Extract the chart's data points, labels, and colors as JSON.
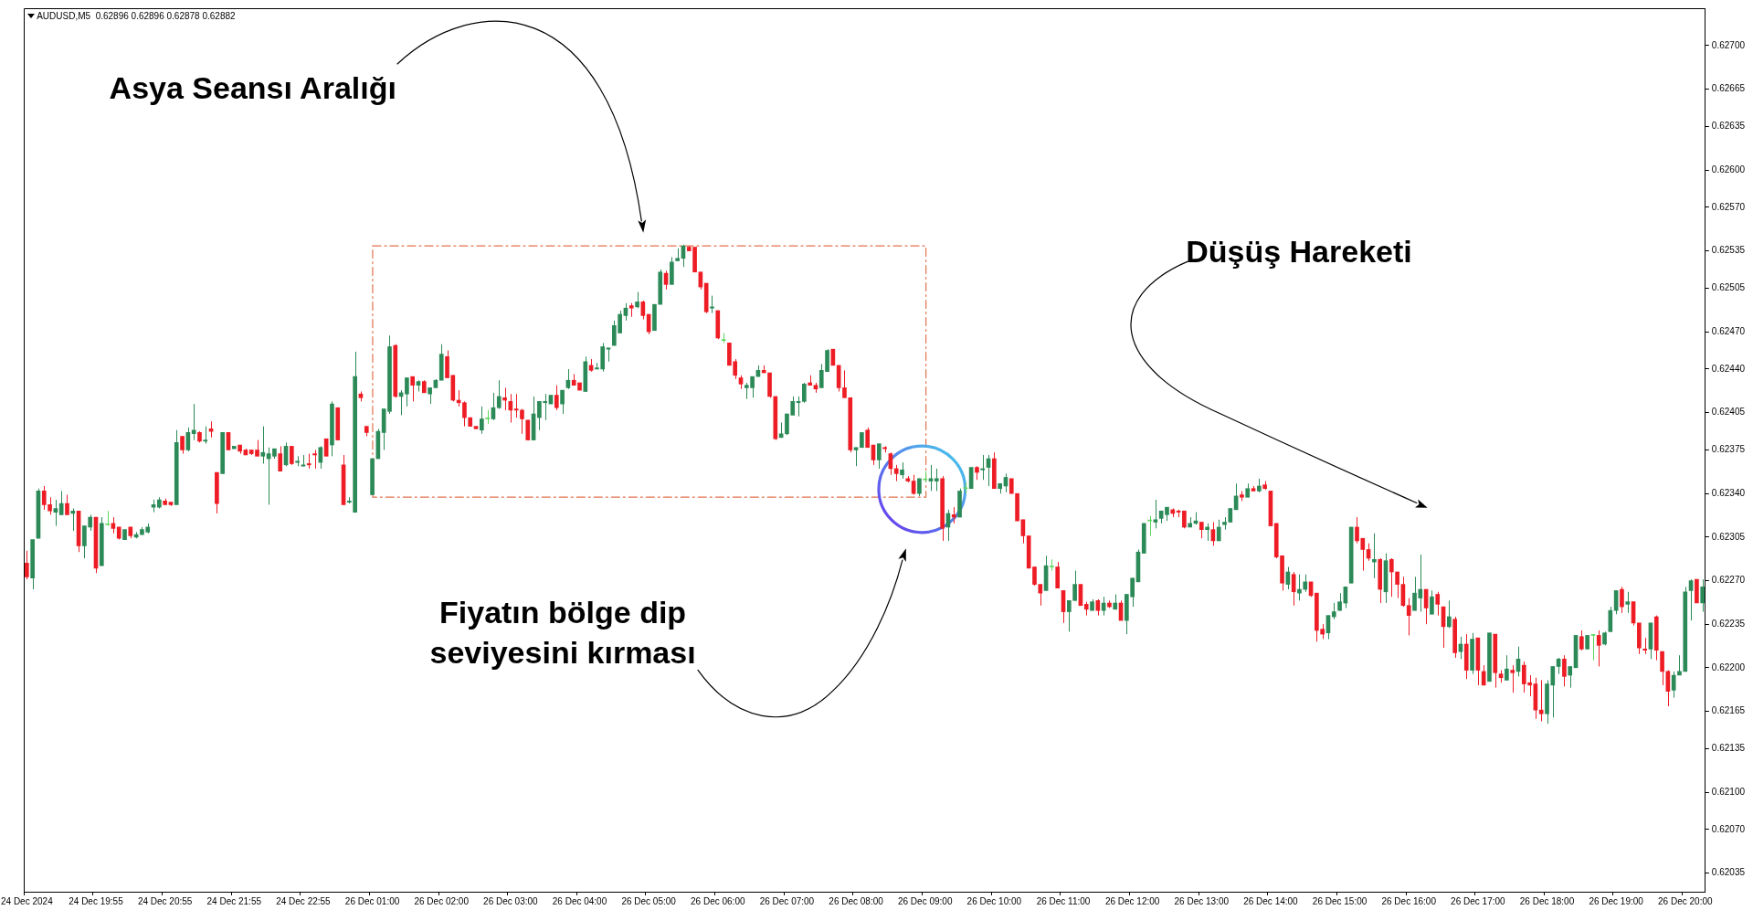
{
  "chart_data": {
    "type": "candlestick",
    "title": "AUDUSD,M5  0.62896 0.62896 0.62878 0.62882",
    "categories": [
      "24 Dec 2024",
      null,
      null,
      null,
      null,
      null,
      null,
      null,
      null,
      null,
      null,
      null,
      "24 Dec 19:55",
      null,
      null,
      null,
      null,
      null,
      null,
      null,
      null,
      null,
      null,
      null,
      "24 Dec 20:55",
      null,
      null,
      null,
      null,
      null,
      null,
      null,
      null,
      null,
      null,
      null,
      "24 Dec 21:55",
      null,
      null,
      null,
      null,
      null,
      null,
      null,
      null,
      null,
      null,
      null,
      "24 Dec 22:55",
      null,
      null,
      null,
      null,
      null,
      null,
      null,
      null,
      null,
      null,
      null,
      "26 Dec 01:00",
      null,
      null,
      null,
      null,
      null,
      null,
      null,
      null,
      null,
      null,
      null,
      "26 Dec 02:00",
      null,
      null,
      null,
      null,
      null,
      null,
      null,
      null,
      null,
      null,
      null,
      "26 Dec 03:00",
      null,
      null,
      null,
      null,
      null,
      null,
      null,
      null,
      null,
      null,
      null,
      "26 Dec 04:00",
      null,
      null,
      null,
      null,
      null,
      null,
      null,
      null,
      null,
      null,
      null,
      "26 Dec 05:00",
      null,
      null,
      null,
      null,
      null,
      null,
      null,
      null,
      null,
      null,
      null,
      "26 Dec 06:00",
      null,
      null,
      null,
      null,
      null,
      null,
      null,
      null,
      null,
      null,
      null,
      "26 Dec 07:00",
      null,
      null,
      null,
      null,
      null,
      null,
      null,
      null,
      null,
      null,
      null,
      "26 Dec 08:00",
      null,
      null,
      null,
      null,
      null,
      null,
      null,
      null,
      null,
      null,
      null,
      "26 Dec 09:00",
      null,
      null,
      null,
      null,
      null,
      null,
      null,
      null,
      null,
      null,
      null,
      "26 Dec 10:00",
      null,
      null,
      null,
      null,
      null,
      null,
      null,
      null,
      null,
      null,
      null,
      "26 Dec 11:00",
      null,
      null,
      null,
      null,
      null,
      null,
      null,
      null,
      null,
      null,
      null,
      "26 Dec 12:00",
      null,
      null,
      null,
      null,
      null,
      null,
      null,
      null,
      null,
      null,
      null,
      "26 Dec 13:00",
      null,
      null,
      null,
      null,
      null,
      null,
      null,
      null,
      null,
      null,
      null,
      "26 Dec 14:00",
      null,
      null,
      null,
      null,
      null,
      null,
      null,
      null,
      null,
      null,
      null,
      "26 Dec 15:00",
      null,
      null,
      null,
      null,
      null,
      null,
      null,
      null,
      null,
      null,
      null,
      "26 Dec 16:00",
      null,
      null,
      null,
      null,
      null,
      null,
      null,
      null,
      null,
      null,
      null,
      "26 Dec 17:00",
      null,
      null,
      null,
      null,
      null,
      null,
      null,
      null,
      null,
      null,
      null,
      "26 Dec 18:00",
      null,
      null,
      null,
      null,
      null,
      null,
      null,
      null,
      null,
      null,
      null,
      "26 Dec 19:00",
      null,
      null,
      null,
      null,
      null,
      null,
      null,
      null,
      null,
      null,
      null,
      "26 Dec 20:00",
      null,
      null,
      null
    ],
    "ohlc": [
      [
        0.62284,
        0.62294,
        0.62271,
        0.62273
      ],
      [
        0.62272,
        0.62303,
        0.62263,
        0.62303
      ],
      [
        0.62304,
        0.62344,
        0.62304,
        0.62342
      ],
      [
        0.62342,
        0.62346,
        0.62327,
        0.62331
      ],
      [
        0.62331,
        0.62337,
        0.62323,
        0.62326
      ],
      [
        0.62325,
        0.62335,
        0.62314,
        0.62328
      ],
      [
        0.62323,
        0.62342,
        0.62323,
        0.62332
      ],
      [
        0.62332,
        0.62339,
        0.62323,
        0.62323
      ],
      [
        0.62324,
        0.62328,
        0.6231,
        0.62326
      ],
      [
        0.62326,
        0.62326,
        0.62293,
        0.62298
      ],
      [
        0.62298,
        0.62314,
        0.62288,
        0.62314
      ],
      [
        0.62313,
        0.62323,
        0.6231,
        0.62321
      ],
      [
        0.62321,
        0.62321,
        0.62276,
        0.6228
      ],
      [
        0.62282,
        0.62321,
        0.62282,
        0.62316
      ],
      [
        0.62315,
        0.62326,
        0.62314,
        0.62315
      ],
      [
        0.62316,
        0.62321,
        0.62308,
        0.62312
      ],
      [
        0.62313,
        0.62313,
        0.62303,
        0.62304
      ],
      [
        0.62303,
        0.62311,
        0.62303,
        0.62311
      ],
      [
        0.62313,
        0.62313,
        0.62304,
        0.62306
      ],
      [
        0.62305,
        0.62309,
        0.62304,
        0.62307
      ],
      [
        0.62307,
        0.62313,
        0.62307,
        0.62311
      ],
      [
        0.62309,
        0.62316,
        0.62308,
        0.62313
      ],
      [
        0.62329,
        0.62335,
        0.62325,
        0.62331
      ],
      [
        0.62329,
        0.62337,
        0.62328,
        0.62335
      ],
      [
        0.62334,
        0.62336,
        0.62331,
        0.62331
      ],
      [
        0.62333,
        0.62333,
        0.6233,
        0.62331
      ],
      [
        0.62331,
        0.62391,
        0.62331,
        0.62381
      ],
      [
        0.62386,
        0.62386,
        0.62372,
        0.62375
      ],
      [
        0.62375,
        0.62393,
        0.62374,
        0.62389
      ],
      [
        0.62388,
        0.62412,
        0.62383,
        0.62391
      ],
      [
        0.62389,
        0.6239,
        0.62381,
        0.62382
      ],
      [
        0.62382,
        0.62394,
        0.6238,
        0.62383
      ],
      [
        0.62392,
        0.62398,
        0.62385,
        0.6239
      ],
      [
        0.62357,
        0.62357,
        0.62324,
        0.62332
      ],
      [
        0.62356,
        0.62389,
        0.62356,
        0.62389
      ],
      [
        0.62389,
        0.62389,
        0.62375,
        0.62375
      ],
      [
        0.62376,
        0.62378,
        0.62376,
        0.62378
      ],
      [
        0.62379,
        0.62379,
        0.62372,
        0.62374
      ],
      [
        0.62375,
        0.62376,
        0.62371,
        0.62371
      ],
      [
        0.62375,
        0.62375,
        0.62371,
        0.62372
      ],
      [
        0.62375,
        0.62383,
        0.6237,
        0.6237
      ],
      [
        0.6237,
        0.62394,
        0.62364,
        0.62373
      ],
      [
        0.62368,
        0.62377,
        0.62331,
        0.62372
      ],
      [
        0.6237,
        0.62376,
        0.62368,
        0.62376
      ],
      [
        0.62372,
        0.62378,
        0.62358,
        0.62358
      ],
      [
        0.62363,
        0.62381,
        0.62362,
        0.62378
      ],
      [
        0.62378,
        0.62378,
        0.62363,
        0.62364
      ],
      [
        0.62365,
        0.6237,
        0.62362,
        0.62366
      ],
      [
        0.62362,
        0.62371,
        0.62362,
        0.62363
      ],
      [
        0.62364,
        0.62372,
        0.6236,
        0.62363
      ],
      [
        0.62372,
        0.62375,
        0.6236,
        0.62371
      ],
      [
        0.62365,
        0.62378,
        0.6236,
        0.62377
      ],
      [
        0.62384,
        0.62384,
        0.6237,
        0.6237
      ],
      [
        0.62379,
        0.62414,
        0.6237,
        0.62412
      ],
      [
        0.62409,
        0.62409,
        0.62383,
        0.62383
      ],
      [
        0.62363,
        0.62371,
        0.62331,
        0.62331
      ],
      [
        0.62333,
        0.62337,
        0.62332,
        0.62334
      ],
      [
        0.62325,
        0.62454,
        0.62325,
        0.62434
      ],
      [
        0.6242,
        0.62422,
        0.62414,
        0.62417
      ],
      [
        0.62394,
        0.62394,
        0.62386,
        0.62389
      ],
      [
        0.62339,
        0.62368,
        0.62339,
        0.62368
      ],
      [
        0.62368,
        0.62392,
        0.62368,
        0.6239
      ],
      [
        0.62389,
        0.62408,
        0.62375,
        0.62408
      ],
      [
        0.62406,
        0.62467,
        0.62404,
        0.62458
      ],
      [
        0.62459,
        0.6246,
        0.62417,
        0.62418
      ],
      [
        0.62418,
        0.62423,
        0.62403,
        0.62421
      ],
      [
        0.6242,
        0.62433,
        0.6241,
        0.62433
      ],
      [
        0.62434,
        0.62434,
        0.62414,
        0.62427
      ],
      [
        0.62427,
        0.62431,
        0.62422,
        0.6243
      ],
      [
        0.6243,
        0.62431,
        0.62421,
        0.62421
      ],
      [
        0.6242,
        0.62425,
        0.62412,
        0.62425
      ],
      [
        0.62425,
        0.62432,
        0.62425,
        0.62431
      ],
      [
        0.62431,
        0.6246,
        0.62431,
        0.62452
      ],
      [
        0.6245,
        0.62455,
        0.62433,
        0.62433
      ],
      [
        0.62435,
        0.62435,
        0.62414,
        0.62415
      ],
      [
        0.62415,
        0.62423,
        0.6241,
        0.62413
      ],
      [
        0.62413,
        0.62414,
        0.62394,
        0.62401
      ],
      [
        0.62401,
        0.62401,
        0.62394,
        0.62394
      ],
      [
        0.62394,
        0.62394,
        0.62392,
        0.62392
      ],
      [
        0.62391,
        0.6241,
        0.62388,
        0.624
      ],
      [
        0.624,
        0.62407,
        0.62396,
        0.624
      ],
      [
        0.624,
        0.62421,
        0.62399,
        0.62409
      ],
      [
        0.62409,
        0.62431,
        0.62408,
        0.62418
      ],
      [
        0.62417,
        0.62425,
        0.62407,
        0.62415
      ],
      [
        0.62414,
        0.6242,
        0.62397,
        0.62407
      ],
      [
        0.62408,
        0.6242,
        0.62401,
        0.62407
      ],
      [
        0.62407,
        0.62408,
        0.62388,
        0.624
      ],
      [
        0.62399,
        0.62399,
        0.62383,
        0.62383
      ],
      [
        0.62383,
        0.62418,
        0.62383,
        0.62404
      ],
      [
        0.62401,
        0.62414,
        0.62391,
        0.62414
      ],
      [
        0.62413,
        0.6242,
        0.62399,
        0.62414
      ],
      [
        0.62412,
        0.62419,
        0.62412,
        0.62419
      ],
      [
        0.62419,
        0.62427,
        0.62407,
        0.62409
      ],
      [
        0.62412,
        0.62423,
        0.62404,
        0.62423
      ],
      [
        0.62425,
        0.6244,
        0.62424,
        0.62431
      ],
      [
        0.62431,
        0.62436,
        0.62427,
        0.62427
      ],
      [
        0.62429,
        0.62429,
        0.62423,
        0.62423
      ],
      [
        0.62422,
        0.6245,
        0.62422,
        0.62446
      ],
      [
        0.62443,
        0.62448,
        0.62438,
        0.62439
      ],
      [
        0.6244,
        0.62445,
        0.6244,
        0.62441
      ],
      [
        0.6244,
        0.62461,
        0.62438,
        0.62458
      ],
      [
        0.62456,
        0.62457,
        0.62446,
        0.62457
      ],
      [
        0.62459,
        0.62479,
        0.62459,
        0.62475
      ],
      [
        0.62469,
        0.62487,
        0.62469,
        0.62484
      ],
      [
        0.62483,
        0.62493,
        0.62479,
        0.62489
      ],
      [
        0.62491,
        0.62493,
        0.62482,
        0.62489
      ],
      [
        0.6249,
        0.62502,
        0.62489,
        0.62494
      ],
      [
        0.62494,
        0.62495,
        0.6248,
        0.62483
      ],
      [
        0.62484,
        0.62484,
        0.62468,
        0.6247
      ],
      [
        0.62471,
        0.62492,
        0.62471,
        0.62492
      ],
      [
        0.62492,
        0.6252,
        0.62492,
        0.62518
      ],
      [
        0.62517,
        0.62519,
        0.62504,
        0.62508
      ],
      [
        0.62508,
        0.6253,
        0.62508,
        0.62526
      ],
      [
        0.62527,
        0.62537,
        0.62527,
        0.62529
      ],
      [
        0.62529,
        0.6254,
        0.62522,
        0.62539
      ],
      [
        0.62538,
        0.62539,
        0.62535,
        0.62535
      ],
      [
        0.62538,
        0.62538,
        0.62518,
        0.62518
      ],
      [
        0.62518,
        0.62518,
        0.62504,
        0.62506
      ],
      [
        0.62509,
        0.62509,
        0.62485,
        0.62486
      ],
      [
        0.62489,
        0.62499,
        0.62485,
        0.6249
      ],
      [
        0.62487,
        0.62487,
        0.62464,
        0.62465
      ],
      [
        0.62463,
        0.62469,
        0.62461,
        0.62463
      ],
      [
        0.62461,
        0.62461,
        0.62443,
        0.62443
      ],
      [
        0.62446,
        0.62448,
        0.62432,
        0.62435
      ],
      [
        0.62433,
        0.62435,
        0.62424,
        0.62428
      ],
      [
        0.62425,
        0.62429,
        0.62416,
        0.62427
      ],
      [
        0.62425,
        0.62434,
        0.62417,
        0.62434
      ],
      [
        0.62434,
        0.62443,
        0.62434,
        0.62439
      ],
      [
        0.62439,
        0.62443,
        0.62437,
        0.62437
      ],
      [
        0.62437,
        0.62437,
        0.62417,
        0.62418
      ],
      [
        0.62418,
        0.62418,
        0.62383,
        0.62384
      ],
      [
        0.62385,
        0.62397,
        0.62385,
        0.62388
      ],
      [
        0.62388,
        0.62404,
        0.62387,
        0.62404
      ],
      [
        0.62403,
        0.62418,
        0.62403,
        0.62414
      ],
      [
        0.62413,
        0.62418,
        0.62402,
        0.62414
      ],
      [
        0.62414,
        0.62429,
        0.62413,
        0.62428
      ],
      [
        0.62429,
        0.62435,
        0.62427,
        0.62427
      ],
      [
        0.62427,
        0.62429,
        0.62421,
        0.62424
      ],
      [
        0.62425,
        0.62444,
        0.62425,
        0.62439
      ],
      [
        0.62438,
        0.62456,
        0.62438,
        0.62455
      ],
      [
        0.62456,
        0.62456,
        0.62443,
        0.62443
      ],
      [
        0.62443,
        0.62443,
        0.62422,
        0.62425
      ],
      [
        0.62425,
        0.62439,
        0.62417,
        0.62417
      ],
      [
        0.62417,
        0.62417,
        0.62373,
        0.62375
      ],
      [
        0.62375,
        0.62377,
        0.62362,
        0.62377
      ],
      [
        0.62377,
        0.62389,
        0.62377,
        0.62389
      ],
      [
        0.62391,
        0.62393,
        0.62377,
        0.62377
      ],
      [
        0.62379,
        0.62379,
        0.62363,
        0.62367
      ],
      [
        0.62367,
        0.6238,
        0.6236,
        0.6238
      ],
      [
        0.62377,
        0.62378,
        0.62373,
        0.62376
      ],
      [
        0.62372,
        0.62373,
        0.62355,
        0.6236
      ],
      [
        0.6236,
        0.62363,
        0.6235,
        0.62356
      ],
      [
        0.62355,
        0.62365,
        0.62352,
        0.62359
      ],
      [
        0.62352,
        0.62354,
        0.62349,
        0.6235
      ],
      [
        0.6235,
        0.62355,
        0.62339,
        0.6234
      ],
      [
        0.6234,
        0.62352,
        0.62338,
        0.62352
      ],
      [
        0.62351,
        0.62358,
        0.62349,
        0.62351
      ],
      [
        0.6235,
        0.62363,
        0.62342,
        0.62352
      ],
      [
        0.6235,
        0.6236,
        0.62342,
        0.62352
      ],
      [
        0.62352,
        0.62354,
        0.62302,
        0.62312
      ],
      [
        0.62313,
        0.62327,
        0.62302,
        0.62324
      ],
      [
        0.62323,
        0.62329,
        0.62316,
        0.62321
      ],
      [
        0.62321,
        0.62344,
        0.62321,
        0.62342
      ],
      [
        0.62344,
        0.62349,
        0.6234,
        0.62344
      ],
      [
        0.62344,
        0.62361,
        0.62344,
        0.62361
      ],
      [
        0.62361,
        0.62362,
        0.62351,
        0.62357
      ],
      [
        0.62359,
        0.62371,
        0.62351,
        0.6236
      ],
      [
        0.62361,
        0.62371,
        0.62346,
        0.62368
      ],
      [
        0.62368,
        0.62373,
        0.62344,
        0.62344
      ],
      [
        0.62344,
        0.62348,
        0.6234,
        0.62348
      ],
      [
        0.62346,
        0.62356,
        0.62341,
        0.62353
      ],
      [
        0.62352,
        0.62352,
        0.6234,
        0.6234
      ],
      [
        0.6234,
        0.6234,
        0.62318,
        0.62318
      ],
      [
        0.62319,
        0.62319,
        0.623,
        0.62306
      ],
      [
        0.62306,
        0.62306,
        0.6228,
        0.6228
      ],
      [
        0.62281,
        0.62281,
        0.62266,
        0.62267
      ],
      [
        0.62267,
        0.62267,
        0.6225,
        0.6226
      ],
      [
        0.62262,
        0.6229,
        0.62262,
        0.62282
      ],
      [
        0.62281,
        0.62287,
        0.62278,
        0.62281
      ],
      [
        0.62281,
        0.62285,
        0.62264,
        0.62264
      ],
      [
        0.62262,
        0.62262,
        0.62236,
        0.62245
      ],
      [
        0.62245,
        0.62254,
        0.62229,
        0.62254
      ],
      [
        0.62254,
        0.62278,
        0.62254,
        0.62267
      ],
      [
        0.62267,
        0.62267,
        0.6225,
        0.6225
      ],
      [
        0.62251,
        0.62253,
        0.62242,
        0.62247
      ],
      [
        0.62246,
        0.62255,
        0.62246,
        0.62253
      ],
      [
        0.62254,
        0.62255,
        0.62242,
        0.62246
      ],
      [
        0.62246,
        0.62257,
        0.62242,
        0.62252
      ],
      [
        0.62252,
        0.62254,
        0.62248,
        0.62249
      ],
      [
        0.62247,
        0.62259,
        0.62247,
        0.62252
      ],
      [
        0.62252,
        0.62254,
        0.62238,
        0.62238
      ],
      [
        0.62238,
        0.62259,
        0.62227,
        0.62259
      ],
      [
        0.62257,
        0.62272,
        0.62249,
        0.62272
      ],
      [
        0.62269,
        0.62295,
        0.62269,
        0.62293
      ],
      [
        0.62292,
        0.62316,
        0.62292,
        0.62316
      ],
      [
        0.62318,
        0.62322,
        0.62306,
        0.62318
      ],
      [
        0.62317,
        0.62335,
        0.62312,
        0.62319
      ],
      [
        0.6232,
        0.62326,
        0.62316,
        0.62326
      ],
      [
        0.62323,
        0.62329,
        0.62318,
        0.62329
      ],
      [
        0.62327,
        0.62328,
        0.62321,
        0.62324
      ],
      [
        0.62326,
        0.62327,
        0.62321,
        0.62325
      ],
      [
        0.62326,
        0.62326,
        0.62312,
        0.62313
      ],
      [
        0.62313,
        0.62321,
        0.62313,
        0.62316
      ],
      [
        0.62316,
        0.62325,
        0.62315,
        0.62318
      ],
      [
        0.62317,
        0.62317,
        0.62304,
        0.62311
      ],
      [
        0.62311,
        0.62316,
        0.62302,
        0.62313
      ],
      [
        0.62311,
        0.62317,
        0.62298,
        0.62302
      ],
      [
        0.62302,
        0.62319,
        0.62302,
        0.62313
      ],
      [
        0.62315,
        0.62321,
        0.62311,
        0.62317
      ],
      [
        0.62317,
        0.62328,
        0.62317,
        0.62328
      ],
      [
        0.62327,
        0.62348,
        0.62327,
        0.62338
      ],
      [
        0.62339,
        0.62342,
        0.62334,
        0.62337
      ],
      [
        0.62337,
        0.62348,
        0.62337,
        0.62344
      ],
      [
        0.62344,
        0.62346,
        0.62342,
        0.62342
      ],
      [
        0.62342,
        0.62352,
        0.62341,
        0.62346
      ],
      [
        0.62347,
        0.6235,
        0.62343,
        0.62344
      ],
      [
        0.62342,
        0.62342,
        0.62314,
        0.62314
      ],
      [
        0.62316,
        0.62316,
        0.62288,
        0.62289
      ],
      [
        0.6229,
        0.6229,
        0.62262,
        0.62268
      ],
      [
        0.62267,
        0.62281,
        0.62263,
        0.62277
      ],
      [
        0.62275,
        0.62277,
        0.6225,
        0.62261
      ],
      [
        0.6226,
        0.62275,
        0.62254,
        0.62263
      ],
      [
        0.62263,
        0.62275,
        0.62261,
        0.62269
      ],
      [
        0.62269,
        0.62269,
        0.62257,
        0.62258
      ],
      [
        0.6226,
        0.6226,
        0.62221,
        0.6223
      ],
      [
        0.62231,
        0.62235,
        0.62223,
        0.62227
      ],
      [
        0.62228,
        0.62242,
        0.62223,
        0.62242
      ],
      [
        0.62241,
        0.62252,
        0.62239,
        0.62245
      ],
      [
        0.62246,
        0.6226,
        0.62246,
        0.62253
      ],
      [
        0.62252,
        0.62265,
        0.62248,
        0.62265
      ],
      [
        0.62268,
        0.62313,
        0.62268,
        0.62313
      ],
      [
        0.62313,
        0.62321,
        0.623,
        0.62302
      ],
      [
        0.62304,
        0.62304,
        0.62278,
        0.62295
      ],
      [
        0.62295,
        0.623,
        0.62286,
        0.62288
      ],
      [
        0.62285,
        0.62308,
        0.62272,
        0.62287
      ],
      [
        0.62287,
        0.62288,
        0.62252,
        0.62263
      ],
      [
        0.62261,
        0.62292,
        0.62252,
        0.62286
      ],
      [
        0.62287,
        0.62288,
        0.62257,
        0.62277
      ],
      [
        0.62277,
        0.62277,
        0.62256,
        0.62267
      ],
      [
        0.62267,
        0.62273,
        0.62249,
        0.6225
      ],
      [
        0.6225,
        0.62256,
        0.62226,
        0.62242
      ],
      [
        0.62246,
        0.62273,
        0.62246,
        0.6226
      ],
      [
        0.62256,
        0.62291,
        0.62245,
        0.62263
      ],
      [
        0.62263,
        0.62263,
        0.62235,
        0.62248
      ],
      [
        0.62243,
        0.62262,
        0.62243,
        0.62257
      ],
      [
        0.62259,
        0.62261,
        0.62242,
        0.62251
      ],
      [
        0.62249,
        0.62249,
        0.62216,
        0.62233
      ],
      [
        0.62233,
        0.62254,
        0.62232,
        0.62241
      ],
      [
        0.62239,
        0.62241,
        0.62208,
        0.62212
      ],
      [
        0.62213,
        0.62225,
        0.62207,
        0.62219
      ],
      [
        0.62219,
        0.62227,
        0.62191,
        0.62198
      ],
      [
        0.62198,
        0.62228,
        0.62195,
        0.62223
      ],
      [
        0.62224,
        0.62224,
        0.62186,
        0.62198
      ],
      [
        0.62197,
        0.62202,
        0.62186,
        0.62186
      ],
      [
        0.62189,
        0.62228,
        0.62189,
        0.62228
      ],
      [
        0.62227,
        0.62227,
        0.62184,
        0.62196
      ],
      [
        0.62195,
        0.62198,
        0.62188,
        0.62192
      ],
      [
        0.6219,
        0.6221,
        0.6219,
        0.62199
      ],
      [
        0.62198,
        0.62202,
        0.6218,
        0.62196
      ],
      [
        0.62197,
        0.62217,
        0.62193,
        0.62207
      ],
      [
        0.62202,
        0.62205,
        0.6218,
        0.62187
      ],
      [
        0.62188,
        0.62194,
        0.62177,
        0.62186
      ],
      [
        0.62187,
        0.62192,
        0.62159,
        0.62166
      ],
      [
        0.62166,
        0.6219,
        0.62157,
        0.62163
      ],
      [
        0.62163,
        0.6219,
        0.62155,
        0.62187
      ],
      [
        0.62186,
        0.62201,
        0.6216,
        0.62201
      ],
      [
        0.62201,
        0.62208,
        0.62195,
        0.62207
      ],
      [
        0.62207,
        0.6221,
        0.62185,
        0.62193
      ],
      [
        0.62194,
        0.62201,
        0.62184,
        0.62201
      ],
      [
        0.622,
        0.62226,
        0.622,
        0.62226
      ],
      [
        0.62225,
        0.6223,
        0.62214,
        0.62215
      ],
      [
        0.62215,
        0.62226,
        0.62215,
        0.62226
      ],
      [
        0.62226,
        0.62227,
        0.62206,
        0.62226
      ],
      [
        0.62226,
        0.6223,
        0.62201,
        0.62218
      ],
      [
        0.62219,
        0.62229,
        0.62218,
        0.62228
      ],
      [
        0.62229,
        0.62249,
        0.62229,
        0.62246
      ],
      [
        0.62246,
        0.62262,
        0.62243,
        0.62262
      ],
      [
        0.62263,
        0.62265,
        0.62244,
        0.62249
      ],
      [
        0.62251,
        0.62261,
        0.62244,
        0.62253
      ],
      [
        0.62253,
        0.62253,
        0.62234,
        0.62236
      ],
      [
        0.62236,
        0.62236,
        0.62211,
        0.62216
      ],
      [
        0.62215,
        0.62224,
        0.62211,
        0.62214
      ],
      [
        0.62215,
        0.62236,
        0.62207,
        0.62236
      ],
      [
        0.62241,
        0.62242,
        0.62206,
        0.62214
      ],
      [
        0.62213,
        0.62213,
        0.62186,
        0.62197
      ],
      [
        0.62197,
        0.62198,
        0.62169,
        0.62181
      ],
      [
        0.62182,
        0.62197,
        0.62176,
        0.62194
      ],
      [
        0.62194,
        0.6221,
        0.62194,
        0.62197
      ],
      [
        0.62197,
        0.62265,
        0.62197,
        0.62261
      ],
      [
        0.62262,
        0.62271,
        0.62238,
        0.6227
      ],
      [
        0.62271,
        0.62271,
        0.62252,
        0.62252
      ],
      [
        0.62252,
        0.62271,
        0.62245,
        0.62265
      ]
    ],
    "colors": [
      "#ee1c25",
      "#2b8a57",
      "#2b8a57",
      "#ee1c25",
      "#ee1c25",
      "#2b8a57",
      "#2b8a57",
      "#ee1c25",
      "#2b8a57",
      "#ee1c25",
      "#2b8a57",
      "#2b8a57",
      "#ee1c25",
      "#2b8a57",
      "#5cd65c",
      "#ee1c25",
      "#ee1c25",
      "#2b8a57",
      "#ee1c25",
      "#2b8a57",
      "#2b8a57",
      "#2b8a57",
      "#2b8a57",
      "#2b8a57",
      "#ee1c25",
      "#ee1c25",
      "#2b8a57",
      "#ee1c25",
      "#2b8a57",
      "#2b8a57",
      "#ee1c25",
      "#2b8a57",
      "#ee1c25",
      "#ee1c25",
      "#2b8a57",
      "#ee1c25",
      "#2b8a57",
      "#ee1c25",
      "#ee1c25",
      "#ee1c25",
      "#ee1c25",
      "#2b8a57",
      "#2b8a57",
      "#2b8a57",
      "#ee1c25",
      "#2b8a57",
      "#ee1c25",
      "#2b8a57",
      "#2b8a57",
      "#ee1c25",
      "#ee1c25",
      "#2b8a57",
      "#ee1c25",
      "#2b8a57",
      "#ee1c25",
      "#ee1c25",
      "#2b8a57",
      "#2b8a57",
      "#ee1c25",
      "#ee1c25",
      "#2b8a57",
      "#2b8a57",
      "#2b8a57",
      "#2b8a57",
      "#ee1c25",
      "#2b8a57",
      "#2b8a57",
      "#ee1c25",
      "#2b8a57",
      "#ee1c25",
      "#2b8a57",
      "#2b8a57",
      "#2b8a57",
      "#ee1c25",
      "#ee1c25",
      "#ee1c25",
      "#ee1c25",
      "#ee1c25",
      "#ee1c25",
      "#2b8a57",
      "#5cd65c",
      "#2b8a57",
      "#2b8a57",
      "#ee1c25",
      "#ee1c25",
      "#ee1c25",
      "#ee1c25",
      "#ee1c25",
      "#2b8a57",
      "#2b8a57",
      "#2b8a57",
      "#2b8a57",
      "#ee1c25",
      "#2b8a57",
      "#2b8a57",
      "#ee1c25",
      "#ee1c25",
      "#2b8a57",
      "#ee1c25",
      "#2b8a57",
      "#2b8a57",
      "#2b8a57",
      "#2b8a57",
      "#2b8a57",
      "#2b8a57",
      "#ee1c25",
      "#2b8a57",
      "#ee1c25",
      "#ee1c25",
      "#2b8a57",
      "#2b8a57",
      "#ee1c25",
      "#2b8a57",
      "#2b8a57",
      "#2b8a57",
      "#ee1c25",
      "#ee1c25",
      "#ee1c25",
      "#ee1c25",
      "#2b8a57",
      "#ee1c25",
      "#5cd65c",
      "#ee1c25",
      "#ee1c25",
      "#ee1c25",
      "#2b8a57",
      "#2b8a57",
      "#2b8a57",
      "#ee1c25",
      "#ee1c25",
      "#ee1c25",
      "#2b8a57",
      "#2b8a57",
      "#2b8a57",
      "#2b8a57",
      "#2b8a57",
      "#ee1c25",
      "#ee1c25",
      "#2b8a57",
      "#2b8a57",
      "#ee1c25",
      "#ee1c25",
      "#ee1c25",
      "#ee1c25",
      "#2b8a57",
      "#2b8a57",
      "#ee1c25",
      "#ee1c25",
      "#2b8a57",
      "#ee1c25",
      "#ee1c25",
      "#ee1c25",
      "#2b8a57",
      "#ee1c25",
      "#ee1c25",
      "#2b8a57",
      "#5cd65c",
      "#2b8a57",
      "#2b8a57",
      "#ee1c25",
      "#2b8a57",
      "#ee1c25",
      "#2b8a57",
      "#5cd65c",
      "#2b8a57",
      "#ee1c25",
      "#2b8a57",
      "#2b8a57",
      "#ee1c25",
      "#2b8a57",
      "#2b8a57",
      "#ee1c25",
      "#ee1c25",
      "#ee1c25",
      "#ee1c25",
      "#ee1c25",
      "#ee1c25",
      "#2b8a57",
      "#5cd65c",
      "#ee1c25",
      "#ee1c25",
      "#2b8a57",
      "#2b8a57",
      "#ee1c25",
      "#ee1c25",
      "#2b8a57",
      "#ee1c25",
      "#2b8a57",
      "#ee1c25",
      "#2b8a57",
      "#ee1c25",
      "#2b8a57",
      "#2b8a57",
      "#2b8a57",
      "#2b8a57",
      "#5cd65c",
      "#2b8a57",
      "#2b8a57",
      "#2b8a57",
      "#ee1c25",
      "#ee1c25",
      "#ee1c25",
      "#2b8a57",
      "#2b8a57",
      "#ee1c25",
      "#2b8a57",
      "#ee1c25",
      "#2b8a57",
      "#2b8a57",
      "#2b8a57",
      "#2b8a57",
      "#ee1c25",
      "#2b8a57",
      "#ee1c25",
      "#2b8a57",
      "#ee1c25",
      "#ee1c25",
      "#ee1c25",
      "#ee1c25",
      "#2b8a57",
      "#ee1c25",
      "#2b8a57",
      "#2b8a57",
      "#ee1c25",
      "#ee1c25",
      "#ee1c25",
      "#2b8a57",
      "#2b8a57",
      "#2b8a57",
      "#2b8a57",
      "#2b8a57",
      "#ee1c25",
      "#ee1c25",
      "#ee1c25",
      "#2b8a57",
      "#ee1c25",
      "#2b8a57",
      "#ee1c25",
      "#ee1c25",
      "#ee1c25",
      "#ee1c25",
      "#2b8a57",
      "#2b8a57",
      "#ee1c25",
      "#2b8a57",
      "#ee1c25",
      "#ee1c25",
      "#2b8a57",
      "#ee1c25",
      "#2b8a57",
      "#ee1c25",
      "#2b8a57",
      "#ee1c25",
      "#ee1c25",
      "#2b8a57",
      "#ee1c25",
      "#ee1c25",
      "#2b8a57",
      "#ee1c25",
      "#2b8a57",
      "#ee1c25",
      "#ee1c25",
      "#ee1c25",
      "#ee1c25",
      "#2b8a57",
      "#2b8a57",
      "#2b8a57",
      "#ee1c25",
      "#2b8a57",
      "#2b8a57",
      "#ee1c25",
      "#2b8a57",
      "#5cd65c",
      "#ee1c25",
      "#2b8a57",
      "#2b8a57",
      "#2b8a57",
      "#ee1c25",
      "#2b8a57",
      "#ee1c25",
      "#ee1c25",
      "#ee1c25",
      "#2b8a57",
      "#ee1c25",
      "#ee1c25",
      "#ee1c25",
      "#2b8a57",
      "#2b8a57",
      "#2b8a57",
      "#2b8a57",
      "#ee1c25",
      "#2b8a57"
    ],
    "ylim": [
      0.6202,
      0.6273
    ],
    "yticks": [
      {
        "value": 0.627,
        "label": "0.62700"
      },
      0.62665,
      0.62635,
      {
        "value": 0.626,
        "label": "0.62600"
      },
      {
        "value": 0.6257,
        "label": "0.62570"
      },
      0.62535,
      0.62505,
      {
        "value": 0.6247,
        "label": "0.62470"
      },
      {
        "value": 0.6244,
        "label": "0.62440"
      },
      0.62405,
      0.62375,
      {
        "value": 0.6234,
        "label": "0.62340"
      },
      0.62305,
      {
        "value": 0.6227,
        "label": "0.62270"
      },
      0.62235,
      {
        "value": 0.622,
        "label": "0.62200"
      },
      0.62165,
      0.62135,
      {
        "value": 0.621,
        "label": "0.62100"
      },
      {
        "value": 0.6207,
        "label": "0.62070"
      },
      0.62035
    ],
    "annotations": [
      "Asya Seansı Aralığı",
      "Düşüş Hareketi",
      "Fiyatın bölge dip seviyesini kırması"
    ]
  }
}
